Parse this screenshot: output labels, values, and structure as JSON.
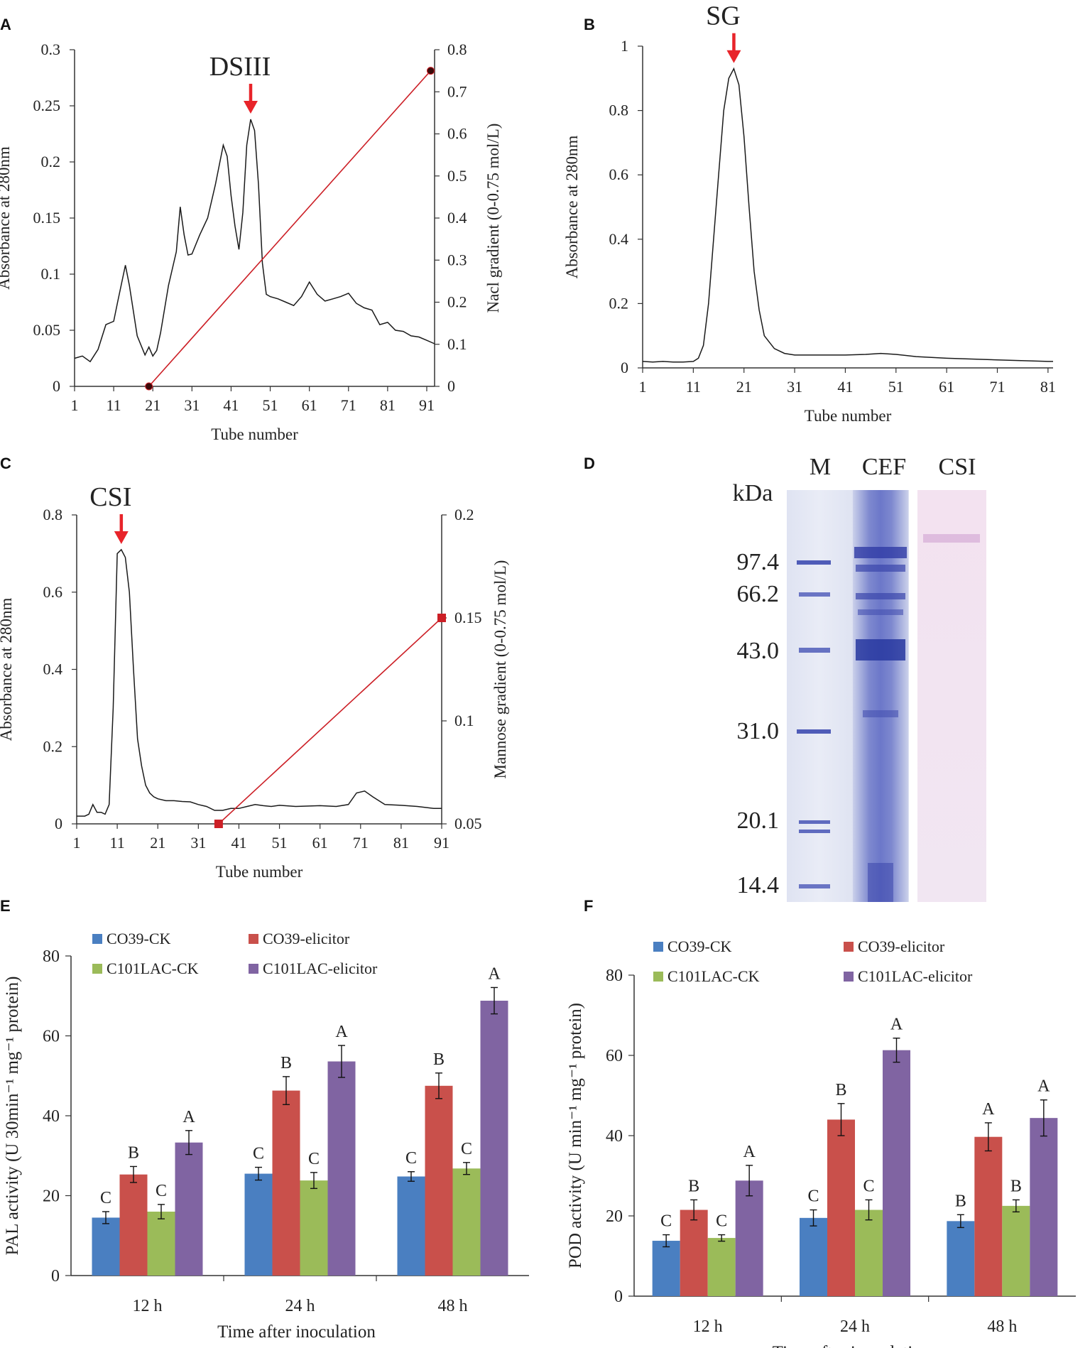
{
  "colors": {
    "arrow": "#e8242a",
    "gradient": "#cc1f26",
    "trace": "#1a1a1a",
    "s1": "#4a7fc1",
    "s2": "#c9504b",
    "s3": "#9bbb59",
    "s4": "#8064a2"
  },
  "panels": {
    "A": {
      "letter": "A"
    },
    "B": {
      "letter": "B"
    },
    "C": {
      "letter": "C"
    },
    "D": {
      "letter": "D"
    },
    "E": {
      "letter": "E"
    },
    "F": {
      "letter": "F"
    }
  },
  "gel": {
    "kda_label": "kDa",
    "lanes": [
      "M",
      "CEF",
      "CSI"
    ],
    "markers": [
      "97.4",
      "66.2",
      "43.0",
      "31.0",
      "20.1",
      "14.4"
    ]
  },
  "chart_data": [
    {
      "id": "A",
      "type": "line",
      "annotation": "DSIII",
      "annotation_x": 46,
      "xlabel": "Tube number",
      "ylabel": "Absorbance at 280nm",
      "y2label": "Nacl gradient (0-0.75 mol/L)",
      "xlim": [
        1,
        93
      ],
      "ylim": [
        0,
        0.3
      ],
      "y2lim": [
        0,
        0.8
      ],
      "xticks": [
        1,
        11,
        21,
        31,
        41,
        51,
        61,
        71,
        81,
        91
      ],
      "yticks": [
        "0",
        "0.05",
        "0.1",
        "0.15",
        "0.2",
        "0.25",
        "0.3"
      ],
      "y2ticks": [
        "0",
        "0.1",
        "0.2",
        "0.3",
        "0.4",
        "0.5",
        "0.6",
        "0.7",
        "0.8"
      ],
      "series": [
        {
          "name": "Absorbance",
          "x": [
            1,
            3,
            5,
            7,
            9,
            11,
            12,
            14,
            15,
            17,
            19,
            20,
            21,
            22,
            23,
            25,
            27,
            28,
            29,
            30,
            31,
            33,
            35,
            37,
            39,
            40,
            41,
            42,
            43,
            44,
            45,
            46,
            47,
            48,
            49,
            50,
            51,
            53,
            55,
            57,
            59,
            61,
            63,
            65,
            67,
            69,
            71,
            73,
            75,
            77,
            79,
            81,
            83,
            85,
            87,
            89,
            91,
            93
          ],
          "y": [
            0.025,
            0.027,
            0.022,
            0.033,
            0.055,
            0.058,
            0.075,
            0.108,
            0.09,
            0.045,
            0.028,
            0.035,
            0.027,
            0.032,
            0.048,
            0.09,
            0.12,
            0.16,
            0.135,
            0.117,
            0.118,
            0.135,
            0.15,
            0.18,
            0.215,
            0.205,
            0.17,
            0.143,
            0.122,
            0.155,
            0.215,
            0.238,
            0.228,
            0.18,
            0.11,
            0.082,
            0.08,
            0.078,
            0.075,
            0.072,
            0.08,
            0.093,
            0.082,
            0.076,
            0.078,
            0.08,
            0.083,
            0.074,
            0.07,
            0.068,
            0.055,
            0.057,
            0.05,
            0.049,
            0.045,
            0.044,
            0.041,
            0.038
          ]
        },
        {
          "name": "Nacl gradient",
          "axis": "right",
          "x": [
            20,
            92
          ],
          "y": [
            0,
            0.75
          ]
        }
      ]
    },
    {
      "id": "B",
      "type": "line",
      "annotation": "SG",
      "annotation_x": 19,
      "xlabel": "Tube number",
      "ylabel": "Absorbance at 280nm",
      "xlim": [
        1,
        82
      ],
      "ylim": [
        0,
        1
      ],
      "xticks": [
        1,
        11,
        21,
        31,
        41,
        51,
        61,
        71,
        81
      ],
      "yticks": [
        "0",
        "0.2",
        "0.4",
        "0.6",
        "0.8",
        "1"
      ],
      "series": [
        {
          "name": "Absorbance",
          "x": [
            1,
            3,
            5,
            7,
            9,
            11,
            12,
            13,
            14,
            15,
            16,
            17,
            18,
            19,
            20,
            21,
            22,
            23,
            24,
            25,
            27,
            29,
            31,
            33,
            35,
            41,
            45,
            48,
            51,
            55,
            61,
            71,
            81,
            82
          ],
          "y": [
            0.02,
            0.018,
            0.02,
            0.018,
            0.018,
            0.02,
            0.03,
            0.07,
            0.2,
            0.4,
            0.6,
            0.8,
            0.9,
            0.93,
            0.88,
            0.72,
            0.5,
            0.3,
            0.18,
            0.1,
            0.06,
            0.045,
            0.04,
            0.04,
            0.04,
            0.04,
            0.042,
            0.045,
            0.042,
            0.035,
            0.03,
            0.025,
            0.02,
            0.02
          ]
        }
      ]
    },
    {
      "id": "C",
      "type": "line",
      "annotation": "CSI",
      "annotation_x": 12,
      "xlabel": "Tube number",
      "ylabel": "Absorbance at 280nm",
      "y2label": "Mannose gradient (0-0.75 mol/L)",
      "xlim": [
        1,
        91
      ],
      "ylim": [
        0,
        0.8
      ],
      "y2lim": [
        0.05,
        0.2
      ],
      "xticks": [
        1,
        11,
        21,
        31,
        41,
        51,
        61,
        71,
        81,
        91
      ],
      "yticks": [
        "0",
        "0.2",
        "0.4",
        "0.6",
        "0.8"
      ],
      "y2ticks": [
        "0.05",
        "0.1",
        "0.15",
        "0.2"
      ],
      "series": [
        {
          "name": "Absorbance",
          "x": [
            1,
            3,
            4,
            5,
            6,
            7,
            8,
            9,
            10,
            11,
            12,
            13,
            14,
            15,
            16,
            17,
            18,
            19,
            20,
            21,
            23,
            25,
            27,
            29,
            31,
            33,
            35,
            37,
            39,
            41,
            43,
            45,
            47,
            49,
            51,
            55,
            61,
            65,
            68,
            70,
            72,
            74,
            77,
            81,
            85,
            89,
            91
          ],
          "y": [
            0.02,
            0.02,
            0.025,
            0.05,
            0.03,
            0.03,
            0.025,
            0.05,
            0.3,
            0.7,
            0.71,
            0.69,
            0.6,
            0.4,
            0.22,
            0.15,
            0.1,
            0.08,
            0.07,
            0.065,
            0.06,
            0.06,
            0.058,
            0.057,
            0.05,
            0.045,
            0.035,
            0.035,
            0.04,
            0.04,
            0.045,
            0.05,
            0.047,
            0.045,
            0.048,
            0.045,
            0.047,
            0.045,
            0.05,
            0.08,
            0.085,
            0.07,
            0.05,
            0.048,
            0.045,
            0.04,
            0.04
          ]
        },
        {
          "name": "Mannose gradient",
          "axis": "right",
          "x": [
            36,
            91
          ],
          "y": [
            0.05,
            0.15
          ]
        }
      ]
    },
    {
      "id": "E",
      "type": "bar",
      "xlabel": "Time after inoculation",
      "ylabel": "PAL activity (U 30min⁻¹ mg⁻¹ protein)",
      "ylim": [
        0,
        80
      ],
      "yticks": [
        "0",
        "20",
        "40",
        "60",
        "80"
      ],
      "categories": [
        "12 h",
        "24 h",
        "48 h"
      ],
      "series": [
        {
          "name": "CO39-CK",
          "values": [
            14.5,
            25.5,
            24.8
          ],
          "errors": [
            1.5,
            1.6,
            1.2
          ],
          "letters": [
            "C",
            "C",
            "C"
          ]
        },
        {
          "name": "CO39-elicitor",
          "values": [
            25.3,
            46.3,
            47.5
          ],
          "errors": [
            2.0,
            3.5,
            3.2
          ],
          "letters": [
            "B",
            "B",
            "B"
          ]
        },
        {
          "name": "C101LAC-CK",
          "values": [
            16.0,
            23.8,
            26.8
          ],
          "errors": [
            1.8,
            2.0,
            1.5
          ],
          "letters": [
            "C",
            "C",
            "C"
          ]
        },
        {
          "name": "C101LAC-elicitor",
          "values": [
            33.3,
            53.6,
            68.8
          ],
          "errors": [
            3.0,
            4.0,
            3.3
          ],
          "letters": [
            "A",
            "A",
            "A"
          ]
        }
      ]
    },
    {
      "id": "F",
      "type": "bar",
      "xlabel": "Time after inoculation",
      "ylabel": "POD activity (U min⁻¹ mg⁻¹ protein)",
      "ylim": [
        0,
        80
      ],
      "yticks": [
        "0",
        "20",
        "40",
        "60",
        "80"
      ],
      "categories": [
        "12 h",
        "24 h",
        "48 h"
      ],
      "series": [
        {
          "name": "CO39-CK",
          "values": [
            13.8,
            19.5,
            18.7
          ],
          "errors": [
            1.5,
            2.0,
            1.6
          ],
          "letters": [
            "C",
            "C",
            "B"
          ]
        },
        {
          "name": "CO39-elicitor",
          "values": [
            21.5,
            44.0,
            39.7
          ],
          "errors": [
            2.5,
            4.0,
            3.5
          ],
          "letters": [
            "B",
            "B",
            "A"
          ]
        },
        {
          "name": "C101LAC-CK",
          "values": [
            14.5,
            21.5,
            22.5
          ],
          "errors": [
            0.8,
            2.5,
            1.5
          ],
          "letters": [
            "C",
            "C",
            "B"
          ]
        },
        {
          "name": "C101LAC-elicitor",
          "values": [
            28.8,
            61.3,
            44.4
          ],
          "errors": [
            3.8,
            3.0,
            4.5
          ],
          "letters": [
            "A",
            "A",
            "A"
          ]
        }
      ]
    }
  ]
}
